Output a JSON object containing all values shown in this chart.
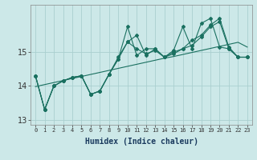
{
  "xlabel": "Humidex (Indice chaleur)",
  "background_color": "#cce8e8",
  "grid_color": "#aacfcf",
  "line_color": "#1a7060",
  "x": [
    0,
    1,
    2,
    3,
    4,
    5,
    6,
    7,
    8,
    9,
    10,
    11,
    12,
    13,
    14,
    15,
    16,
    17,
    18,
    19,
    20,
    21,
    22,
    23
  ],
  "series_linear": [
    13.98,
    14.04,
    14.1,
    14.16,
    14.22,
    14.28,
    14.34,
    14.4,
    14.46,
    14.52,
    14.58,
    14.64,
    14.7,
    14.76,
    14.82,
    14.87,
    14.93,
    14.99,
    15.05,
    15.11,
    15.17,
    15.23,
    15.29,
    15.15
  ],
  "series_a": [
    14.3,
    13.3,
    14.0,
    14.15,
    14.25,
    14.3,
    13.75,
    13.85,
    14.35,
    14.8,
    15.3,
    15.5,
    14.9,
    15.1,
    14.85,
    15.0,
    15.1,
    15.2,
    15.45,
    15.75,
    15.9,
    15.1,
    14.85,
    14.85
  ],
  "series_b": [
    14.3,
    13.3,
    14.0,
    14.15,
    14.25,
    14.3,
    13.75,
    13.85,
    14.35,
    14.8,
    15.75,
    14.9,
    15.1,
    15.1,
    14.85,
    15.05,
    15.75,
    15.1,
    15.85,
    16.0,
    15.15,
    15.1,
    14.85,
    14.85
  ],
  "series_c": [
    14.3,
    13.3,
    14.0,
    14.15,
    14.25,
    14.3,
    13.75,
    13.85,
    14.35,
    14.85,
    15.3,
    15.1,
    14.95,
    15.05,
    14.85,
    14.95,
    15.1,
    15.35,
    15.5,
    15.8,
    16.0,
    15.15,
    14.85,
    14.85
  ],
  "ylim": [
    12.85,
    16.4
  ],
  "yticks": [
    13,
    14,
    15
  ],
  "xlim": [
    -0.5,
    23.5
  ]
}
